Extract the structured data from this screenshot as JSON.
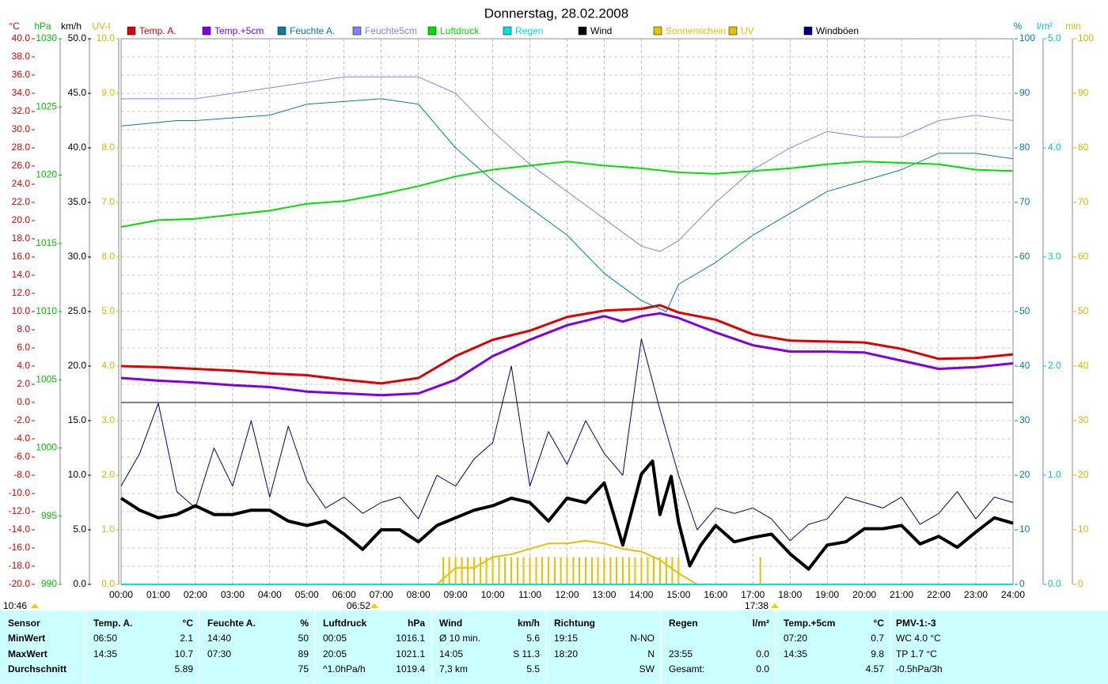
{
  "chart_data": {
    "type": "line",
    "title": "Donnerstag, 28.02.2008",
    "grid": true,
    "xlim": [
      0,
      24
    ],
    "xticks": [
      {
        "value": 0,
        "label": "00:00"
      },
      {
        "value": 1,
        "label": "01:00"
      },
      {
        "value": 2,
        "label": "02:00"
      },
      {
        "value": 3,
        "label": "03:00"
      },
      {
        "value": 4,
        "label": "04:00"
      },
      {
        "value": 5,
        "label": "05:00"
      },
      {
        "value": 6,
        "label": "06:00"
      },
      {
        "value": 7,
        "label": "07:00"
      },
      {
        "value": 8,
        "label": "08:00"
      },
      {
        "value": 9,
        "label": "09:00"
      },
      {
        "value": 10,
        "label": "10:00"
      },
      {
        "value": 11,
        "label": "11:00"
      },
      {
        "value": 12,
        "label": "12:00"
      },
      {
        "value": 13,
        "label": "13:00"
      },
      {
        "value": 14,
        "label": "14:00"
      },
      {
        "value": 15,
        "label": "15:00"
      },
      {
        "value": 16,
        "label": "16:00"
      },
      {
        "value": 17,
        "label": "17:00"
      },
      {
        "value": 18,
        "label": "18:00"
      },
      {
        "value": 19,
        "label": "19:00"
      },
      {
        "value": 20,
        "label": "20:00"
      },
      {
        "value": 21,
        "label": "21:00"
      },
      {
        "value": 22,
        "label": "22:00"
      },
      {
        "value": 23,
        "label": "23:00"
      },
      {
        "value": 24,
        "label": "24:00"
      }
    ],
    "y_axes": {
      "temp": {
        "label": "°C",
        "color": "#e00000",
        "lim": [
          -20,
          40
        ],
        "ticks": [
          {
            "value": 40,
            "label": "40.0"
          },
          {
            "value": 38,
            "label": "38.0"
          },
          {
            "value": 36,
            "label": "36.0"
          },
          {
            "value": 34,
            "label": "34.0"
          },
          {
            "value": 32,
            "label": "32.0"
          },
          {
            "value": 30,
            "label": "30.0"
          },
          {
            "value": 28,
            "label": "28.0"
          },
          {
            "value": 26,
            "label": "26.0"
          },
          {
            "value": 24,
            "label": "24.0"
          },
          {
            "value": 22,
            "label": "22.0"
          },
          {
            "value": 20,
            "label": "20.0"
          },
          {
            "value": 18,
            "label": "18.0"
          },
          {
            "value": 16,
            "label": "16.0"
          },
          {
            "value": 14,
            "label": "14.0"
          },
          {
            "value": 12,
            "label": "12.0"
          },
          {
            "value": 10,
            "label": "10.0"
          },
          {
            "value": 8,
            "label": "8.0"
          },
          {
            "value": 6,
            "label": "6.0"
          },
          {
            "value": 4,
            "label": "4.0"
          },
          {
            "value": 2,
            "label": "2.0"
          },
          {
            "value": 0,
            "label": "0.0"
          },
          {
            "value": -2,
            "label": "-2.0"
          },
          {
            "value": -4,
            "label": "-4.0"
          },
          {
            "value": -6,
            "label": "-6.0"
          },
          {
            "value": -8,
            "label": "-8.0"
          },
          {
            "value": -10,
            "label": "-10.0"
          },
          {
            "value": -12,
            "label": "-12.0"
          },
          {
            "value": -14,
            "label": "-14.0"
          },
          {
            "value": -16,
            "label": "-16.0"
          },
          {
            "value": -18,
            "label": "-18.0"
          },
          {
            "value": -20,
            "label": "-20.0"
          }
        ]
      },
      "hpa": {
        "label": "hPa",
        "color": "#00c000",
        "lim": [
          990,
          1030
        ],
        "ticks": [
          1030,
          1025,
          1020,
          1015,
          1010,
          1005,
          1000,
          995,
          990
        ]
      },
      "kmh": {
        "label": "km/h",
        "color": "#000000",
        "lim": [
          0,
          50
        ],
        "ticks": [
          {
            "value": 50,
            "label": "50.0"
          },
          {
            "value": 45,
            "label": "45.0"
          },
          {
            "value": 40,
            "label": "40.0"
          },
          {
            "value": 35,
            "label": "35.0"
          },
          {
            "value": 30,
            "label": "30.0"
          },
          {
            "value": 25,
            "label": "25.0"
          },
          {
            "value": 20,
            "label": "20.0"
          },
          {
            "value": 15,
            "label": "15.0"
          },
          {
            "value": 10,
            "label": "10.0"
          },
          {
            "value": 5,
            "label": "5.0"
          },
          {
            "value": 0,
            "label": "0.0"
          }
        ]
      },
      "uv": {
        "label": "UV-I",
        "color": "#d8b800",
        "lim": [
          0,
          10
        ],
        "ticks": [
          {
            "value": 10,
            "label": "10.0"
          },
          {
            "value": 9,
            "label": "9.0"
          },
          {
            "value": 8,
            "label": "8.0"
          },
          {
            "value": 7,
            "label": "7.0"
          },
          {
            "value": 6,
            "label": "6.0"
          },
          {
            "value": 5,
            "label": "5.0"
          },
          {
            "value": 4,
            "label": "4.0"
          },
          {
            "value": 3,
            "label": "3.0"
          },
          {
            "value": 2,
            "label": "2.0"
          },
          {
            "value": 1,
            "label": "1.0"
          },
          {
            "value": 0,
            "label": "0.0"
          }
        ]
      },
      "pct": {
        "label": "%",
        "color": "#0080a0",
        "lim": [
          0,
          100
        ],
        "ticks": [
          100,
          90,
          80,
          70,
          60,
          50,
          40,
          30,
          20,
          10,
          0
        ]
      },
      "rain": {
        "label": "l/m²",
        "color": "#00c8d8",
        "lim": [
          0,
          5
        ],
        "ticks": [
          {
            "value": 5,
            "label": "5.0"
          },
          {
            "value": 4,
            "label": "4.0"
          },
          {
            "value": 3,
            "label": "3.0"
          },
          {
            "value": 2,
            "label": "2.0"
          },
          {
            "value": 1,
            "label": "1.0"
          },
          {
            "value": 0,
            "label": "0.0"
          }
        ]
      },
      "min": {
        "label": "min",
        "color": "#d8b800",
        "lim": [
          0,
          100
        ],
        "ticks": [
          100,
          90,
          80,
          70,
          60,
          50,
          40,
          30,
          20,
          10,
          0
        ]
      }
    },
    "series": [
      {
        "name": "Temp. A.",
        "color": "#e00000",
        "axis": "temp",
        "mark": "line",
        "width": 3,
        "x": [
          0,
          1,
          2,
          3,
          4,
          5,
          6,
          7,
          8,
          9,
          10,
          11,
          12,
          13,
          14,
          14.5,
          15,
          16,
          17,
          18,
          19,
          20,
          21,
          22,
          23,
          24
        ],
        "values": [
          4.0,
          3.9,
          3.7,
          3.5,
          3.2,
          3.0,
          2.5,
          2.1,
          2.7,
          5.1,
          6.9,
          7.9,
          9.4,
          10.1,
          10.3,
          10.7,
          9.9,
          9.1,
          7.5,
          6.8,
          6.7,
          6.6,
          5.9,
          4.8,
          4.9,
          5.3
        ]
      },
      {
        "name": "Temp.+5cm",
        "color": "#8000e0",
        "axis": "temp",
        "mark": "line",
        "width": 3,
        "x": [
          0,
          1,
          2,
          3,
          4,
          5,
          6,
          7,
          8,
          9,
          10,
          11,
          12,
          13,
          13.5,
          14,
          14.5,
          15,
          16,
          17,
          18,
          19,
          20,
          21,
          22,
          23,
          24
        ],
        "values": [
          2.7,
          2.4,
          2.2,
          1.9,
          1.7,
          1.2,
          1.0,
          0.8,
          1.0,
          2.5,
          5.1,
          6.9,
          8.5,
          9.5,
          8.9,
          9.5,
          9.8,
          9.3,
          7.7,
          6.3,
          5.6,
          5.6,
          5.5,
          4.6,
          3.7,
          3.9,
          4.3
        ]
      },
      {
        "name": "Feuchte A.",
        "color": "#0080a0",
        "axis": "pct",
        "mark": "line",
        "width": 1,
        "x": [
          0,
          1.5,
          2,
          4,
          5,
          7,
          8,
          9,
          10,
          11,
          12,
          13,
          14,
          14.67,
          15,
          16,
          17,
          18,
          19,
          20,
          21,
          22,
          23,
          24
        ],
        "values": [
          84,
          85,
          85,
          86,
          88,
          89,
          88,
          80,
          74,
          69,
          64,
          57,
          52,
          50,
          55,
          59,
          64,
          68,
          72,
          74,
          76,
          79,
          79,
          78
        ]
      },
      {
        "name": "Feuchte5cm",
        "color": "#8080ff",
        "axis": "pct",
        "mark": "line",
        "width": 1,
        "x": [
          0,
          2,
          4,
          6,
          7,
          8,
          9,
          10,
          11,
          12,
          13,
          14,
          14.5,
          15,
          16,
          17,
          18,
          19,
          20,
          21,
          22,
          23,
          24
        ],
        "values": [
          89,
          89,
          91,
          93,
          93,
          93,
          90,
          83,
          77,
          72,
          67,
          62,
          61,
          63,
          70,
          76,
          80,
          83,
          82,
          82,
          85,
          86,
          85
        ]
      },
      {
        "name": "Luftdruck",
        "color": "#00e000",
        "axis": "hpa",
        "mark": "line",
        "width": 2,
        "x": [
          0,
          1,
          2,
          3,
          4,
          5,
          6,
          7,
          8,
          9,
          10,
          11,
          12,
          13,
          14,
          15,
          16,
          17,
          18,
          19,
          20,
          21,
          22,
          23,
          24
        ],
        "values": [
          1016.2,
          1016.7,
          1016.8,
          1017.1,
          1017.4,
          1017.9,
          1018.1,
          1018.6,
          1019.2,
          1019.9,
          1020.4,
          1020.7,
          1021.0,
          1020.7,
          1020.5,
          1020.2,
          1020.1,
          1020.3,
          1020.5,
          1020.8,
          1021.0,
          1020.9,
          1020.8,
          1020.4,
          1020.3
        ]
      },
      {
        "name": "Regen",
        "color": "#00e0e0",
        "axis": "rain",
        "mark": "line",
        "width": 2,
        "x": [
          0,
          24
        ],
        "values": [
          0,
          0
        ]
      },
      {
        "name": "Wind",
        "color": "#000000",
        "axis": "kmh",
        "mark": "line",
        "width": 4,
        "x": [
          0,
          0.5,
          1,
          1.5,
          2,
          2.5,
          3,
          3.5,
          4,
          4.5,
          5,
          5.5,
          6,
          6.5,
          7,
          7.5,
          8,
          8.5,
          9,
          9.5,
          10,
          10.5,
          11,
          11.5,
          12,
          12.5,
          13,
          13.5,
          14,
          14.3,
          14.5,
          14.8,
          15,
          15.3,
          15.6,
          16,
          16.5,
          17,
          17.5,
          18,
          18.5,
          19,
          19.5,
          20,
          20.5,
          21,
          21.5,
          22,
          22.5,
          23,
          23.5,
          24
        ],
        "values": [
          7.9,
          6.8,
          6.1,
          6.4,
          7.2,
          6.4,
          6.4,
          6.8,
          6.8,
          5.8,
          5.4,
          5.8,
          4.6,
          3.2,
          5.0,
          5.0,
          3.9,
          5.4,
          6.1,
          6.8,
          7.2,
          7.9,
          7.5,
          5.8,
          7.9,
          7.5,
          9.3,
          3.6,
          10.1,
          11.3,
          6.4,
          9.9,
          5.7,
          1.7,
          3.6,
          5.4,
          3.9,
          4.3,
          4.6,
          2.8,
          1.4,
          3.6,
          3.9,
          5.1,
          5.1,
          5.4,
          3.7,
          4.4,
          3.4,
          4.8,
          6.1,
          5.6
        ]
      },
      {
        "name": "Sonnenschein",
        "color": "#e8c000",
        "axis": "min",
        "mark": "bar",
        "x": [
          8.67,
          8.83,
          9.0,
          9.17,
          9.33,
          9.5,
          9.67,
          9.83,
          10.0,
          10.17,
          10.33,
          10.5,
          10.67,
          10.83,
          11.0,
          11.17,
          11.33,
          11.5,
          11.67,
          11.83,
          12.0,
          12.17,
          12.33,
          12.5,
          12.67,
          12.83,
          13.0,
          13.17,
          13.33,
          13.5,
          13.67,
          13.83,
          14.0,
          14.17,
          14.33,
          14.5,
          14.67,
          14.83,
          15.0,
          17.2
        ],
        "values": [
          5,
          5,
          5,
          5,
          5,
          5,
          5,
          5,
          5,
          5,
          5,
          5,
          5,
          5,
          5,
          5,
          5,
          5,
          5,
          5,
          5,
          5,
          5,
          5,
          5,
          5,
          5,
          5,
          5,
          5,
          5,
          5,
          5,
          5,
          5,
          5,
          5,
          5,
          5,
          5
        ]
      },
      {
        "name": "UV",
        "color": "#e8c000",
        "axis": "uv",
        "mark": "line",
        "width": 2,
        "x": [
          8.5,
          9,
          9.5,
          10,
          10.5,
          11,
          11.5,
          12,
          12.5,
          13,
          13.5,
          14,
          14.5,
          15,
          15.5
        ],
        "values": [
          0,
          0.3,
          0.3,
          0.5,
          0.55,
          0.65,
          0.75,
          0.75,
          0.8,
          0.75,
          0.65,
          0.6,
          0.45,
          0.2,
          0
        ]
      },
      {
        "name": "Windböen",
        "color": "#000080",
        "axis": "kmh",
        "mark": "line",
        "width": 1,
        "x": [
          0,
          0.5,
          1,
          1.5,
          2,
          2.5,
          3,
          3.5,
          4,
          4.5,
          5,
          5.5,
          6,
          6.5,
          7,
          7.5,
          8,
          8.5,
          9,
          9.5,
          10,
          10.5,
          11,
          11.5,
          12,
          12.5,
          13,
          13.5,
          14,
          14.5,
          15,
          15.5,
          16,
          16.5,
          17,
          17.5,
          18,
          18.5,
          19,
          19.5,
          20,
          20.5,
          21,
          21.5,
          22,
          22.5,
          23,
          23.5,
          24
        ],
        "values": [
          9.0,
          12.0,
          16.6,
          8.5,
          7.0,
          12.5,
          9.0,
          15.0,
          8.0,
          14.5,
          9.5,
          7.0,
          8.0,
          6.5,
          7.5,
          8.0,
          6.0,
          10.0,
          9.0,
          11.5,
          13.0,
          20.0,
          9.0,
          14.0,
          11.0,
          15.0,
          12.0,
          10.0,
          22.5,
          16.0,
          10.0,
          5.0,
          7.0,
          6.5,
          7.0,
          6.0,
          4.0,
          5.5,
          6.0,
          8.0,
          7.5,
          7.0,
          8.0,
          5.5,
          6.5,
          8.5,
          6.0,
          8.0,
          7.5
        ]
      }
    ],
    "markers": [
      "10:46",
      "06:52",
      "17:38"
    ]
  },
  "table": {
    "header": [
      "Sensor",
      "Temp. A.",
      "°C",
      "Feuchte A.",
      "%",
      "Luftdruck",
      "hPa",
      "Wind",
      "km/h",
      "Richtung",
      null,
      "Regen",
      "l/m²",
      "Temp.+5cm",
      "°C",
      "PMV-1:-3"
    ],
    "rows": [
      [
        "MinWert",
        "06:50",
        "2.1",
        "14:40",
        "50",
        "00:05",
        "1016.1",
        "Ø 10 min.",
        "5.6",
        "19:15",
        "N-NO",
        null,
        null,
        "07:20",
        "0.7",
        "WC 4.0 °C"
      ],
      [
        "MaxWert",
        "14:35",
        "10.7",
        "07:30",
        "89",
        "20:05",
        "1021.1",
        "14:05",
        "S 11.3",
        "18:20",
        "N",
        "23:55",
        "0.0",
        "14:35",
        "9.8",
        "TP 1.7 °C"
      ],
      [
        "Durchschnitt",
        null,
        "5.89",
        null,
        "75",
        "^1.0hPa/h",
        "1019.4",
        "7,3 km",
        "5.5",
        null,
        "SW",
        "Gesamt:",
        "0.0",
        null,
        "4.57",
        "-0.5hPa/3h"
      ]
    ]
  }
}
